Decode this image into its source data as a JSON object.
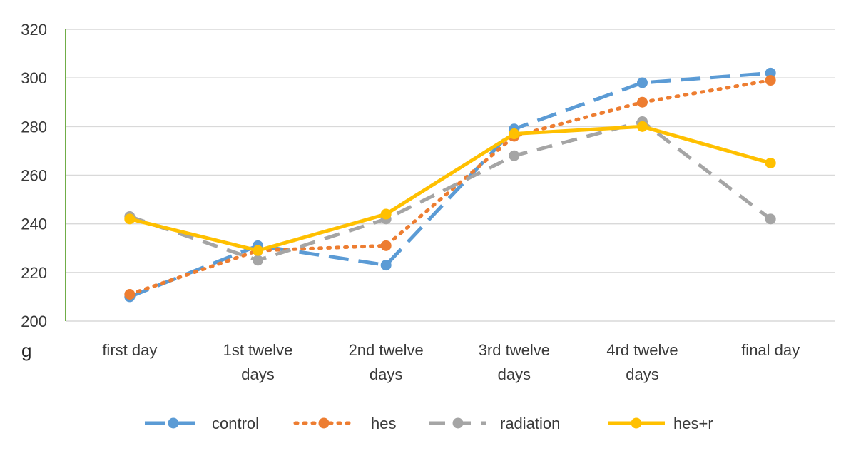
{
  "chart_data": {
    "type": "line",
    "title": "",
    "xlabel": "",
    "ylabel": "g",
    "ylim": [
      200,
      320
    ],
    "yticks": [
      200,
      220,
      240,
      260,
      280,
      300,
      320
    ],
    "grid": true,
    "legend_position": "bottom",
    "categories": [
      [
        "first day"
      ],
      [
        "1st twelve",
        "days"
      ],
      [
        "2nd twelve",
        "days"
      ],
      [
        "3rd twelve",
        "days"
      ],
      [
        "4rd twelve",
        "days"
      ],
      [
        "final day"
      ]
    ],
    "series": [
      {
        "name": "control",
        "color": "#5b9bd5",
        "style": "long-dash",
        "values": [
          210,
          231,
          223,
          279,
          298,
          302
        ]
      },
      {
        "name": "hes",
        "color": "#ed7d31",
        "style": "dotted",
        "values": [
          211,
          229,
          231,
          276,
          290,
          299
        ]
      },
      {
        "name": "radiation",
        "color": "#a5a5a5",
        "style": "dashed",
        "values": [
          243,
          225,
          242,
          268,
          282,
          242
        ]
      },
      {
        "name": "hes+r",
        "color": "#ffc000",
        "style": "solid",
        "values": [
          242,
          229,
          244,
          277,
          280,
          265
        ]
      }
    ]
  },
  "colors": {
    "y_axis_line": "#70ad47",
    "gridline": "#d9d9d9",
    "x_axis_line": "#d9d9d9"
  }
}
